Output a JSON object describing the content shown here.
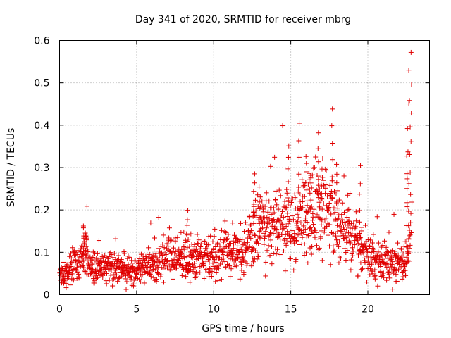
{
  "chart_data": {
    "type": "scatter",
    "title": "Day 341 of 2020, SRMTID for receiver mbrg",
    "xlabel": "GPS time / hours",
    "ylabel": "SRMTID / TECUs",
    "xlim": [
      0,
      24
    ],
    "ylim": [
      0,
      0.6
    ],
    "xticks": [
      0,
      5,
      10,
      15,
      20
    ],
    "xtick_labels": [
      "0",
      "5",
      "10",
      "15",
      "20"
    ],
    "yticks": [
      0,
      0.1,
      0.2,
      0.3,
      0.4,
      0.5,
      0.6
    ],
    "ytick_labels": [
      "0",
      "0.1",
      "0.2",
      "0.3",
      "0.4",
      "0.5",
      "0.6"
    ],
    "grid": true,
    "marker": "+",
    "series": [
      {
        "name": "SRMTID",
        "color": "#e00000",
        "envelope": {
          "description": "approximate median trend of the dense scatter, hours vs TECU",
          "x": [
            0,
            1,
            1.7,
            2,
            3,
            4,
            5,
            6,
            7,
            8,
            9,
            10,
            11,
            12,
            12.5,
            13,
            14,
            15,
            15.5,
            16,
            16.5,
            17,
            17.5,
            18,
            18.5,
            19,
            19.5,
            20,
            21,
            22,
            22.5,
            22.8
          ],
          "y": [
            0.04,
            0.07,
            0.1,
            0.06,
            0.07,
            0.065,
            0.055,
            0.07,
            0.085,
            0.09,
            0.085,
            0.09,
            0.095,
            0.105,
            0.14,
            0.15,
            0.16,
            0.17,
            0.16,
            0.2,
            0.2,
            0.18,
            0.2,
            0.18,
            0.15,
            0.14,
            0.1,
            0.09,
            0.075,
            0.07,
            0.08,
            0.15
          ]
        },
        "peaks_x": [
          1.6,
          1.7,
          8.3,
          12.6,
          13.0,
          14.8,
          15.5,
          16.0,
          16.3,
          16.8,
          17.0,
          17.7,
          18.0,
          19.5,
          22.5,
          22.6,
          22.7,
          22.8
        ],
        "peaks_y": [
          0.165,
          0.15,
          0.2,
          0.29,
          0.25,
          0.32,
          0.4,
          0.33,
          0.28,
          0.38,
          0.3,
          0.44,
          0.31,
          0.3,
          0.33,
          0.45,
          0.53,
          0.57
        ]
      }
    ]
  }
}
